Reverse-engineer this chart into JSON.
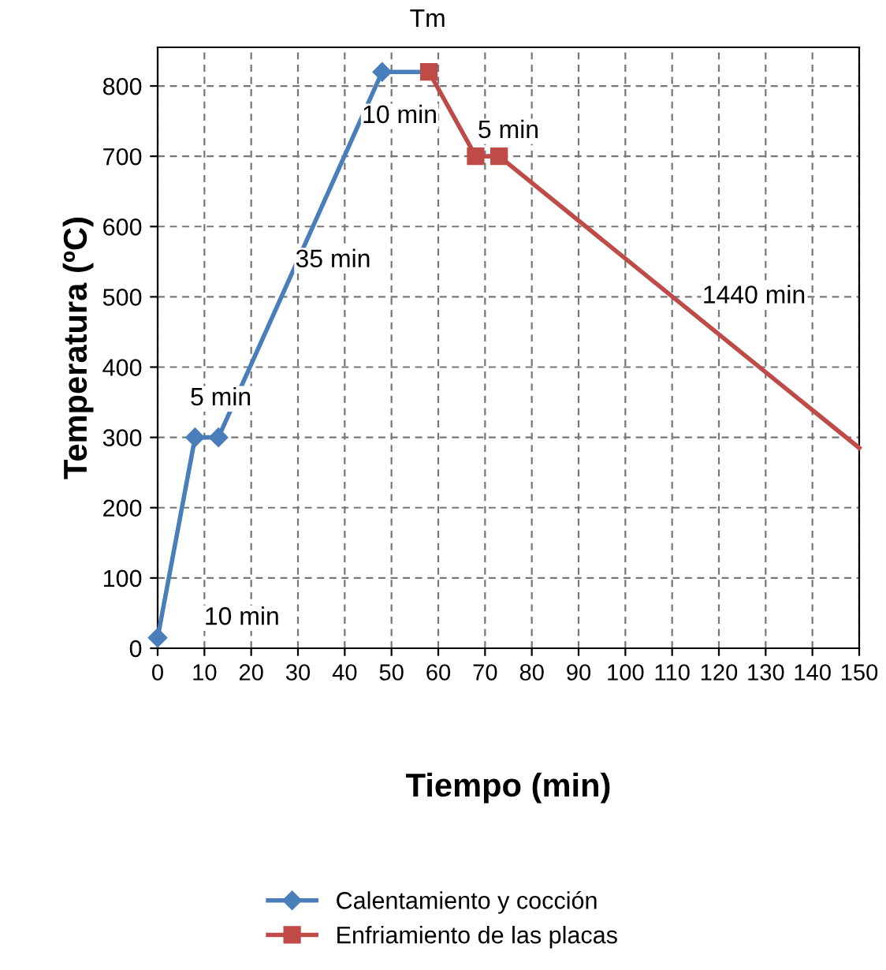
{
  "chart_data": {
    "type": "line",
    "xlabel": "Tiempo (min)",
    "ylabel": "Temperatura (ºC)",
    "series": [
      {
        "name": "Calentamiento y cocción",
        "color": "#4a7ebb",
        "marker": "diamond",
        "x": [
          0,
          8,
          13,
          48,
          57
        ],
        "values": [
          15,
          300,
          300,
          820,
          820
        ]
      },
      {
        "name": "Enfriamiento de las placas",
        "color": "#be4b48",
        "marker": "square",
        "x": [
          58,
          68,
          73,
          150
        ],
        "values": [
          820,
          700,
          700,
          285
        ]
      }
    ],
    "xlim": [
      0,
      150
    ],
    "ylim": [
      0,
      855
    ],
    "xticks": [
      0,
      10,
      20,
      30,
      40,
      50,
      60,
      70,
      80,
      90,
      100,
      110,
      120,
      130,
      140,
      150
    ],
    "yticks": [
      0,
      100,
      200,
      300,
      400,
      500,
      600,
      700,
      800
    ],
    "grid": true,
    "legend": "bottom",
    "line_style": "solid",
    "annotations": [
      "Tm",
      "10 min",
      "5 min",
      "35 min",
      "1440 min",
      "5 min",
      "10 min"
    ]
  }
}
